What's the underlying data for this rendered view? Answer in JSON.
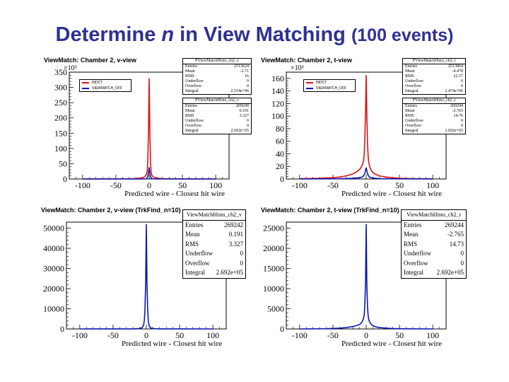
{
  "title": {
    "pre": "Determine ",
    "n": "n",
    "mid": " in View Matching ",
    "paren": "(100 events)"
  },
  "colors": {
    "title": "#2e3192",
    "red": "#dd1111",
    "blue": "#0a16b4"
  },
  "panels": [
    {
      "title": "ViewMatch: Chamber 2, v-view",
      "xlabel": "Predicted wire - Closest hit wire",
      "multiplier": "×10³",
      "legend": [
        "INDCT",
        "VIEWMATCH_OFF"
      ],
      "stats": [
        {
          "title": "PViewMatchHisto_ch2_v",
          "rows": [
            [
              "Entries",
              "2513624"
            ],
            [
              "Mean",
              "-2.71"
            ],
            [
              "RMS",
              "16"
            ],
            [
              "Underflow",
              "0"
            ],
            [
              "Overflow",
              "0"
            ],
            [
              "Integral",
              "2.514e+06"
            ]
          ]
        },
        {
          "title": "PViewMatchHisto_ch2_v",
          "rows": [
            [
              "Entries",
              "269249"
            ],
            [
              "Mean",
              "0.191"
            ],
            [
              "RMS",
              "3.327"
            ],
            [
              "Underflow",
              "0"
            ],
            [
              "Overflow",
              "0"
            ],
            [
              "Integral",
              "2.692e+05"
            ]
          ]
        }
      ]
    },
    {
      "title": "ViewMatch: Chamber 2, t-view",
      "xlabel": "Predicted wire - Closest hit wire",
      "multiplier": "×10³",
      "legend": [
        "INDCT",
        "VIEWMATCH_OFF"
      ],
      "stats": [
        {
          "title": "PViewMatchHisto_ch2_t",
          "rows": [
            [
              "Entries",
              "2513864"
            ],
            [
              "Mean",
              "-4.478"
            ],
            [
              "RMS",
              "22.57"
            ],
            [
              "Underflow",
              "0"
            ],
            [
              "Overflow",
              "0"
            ],
            [
              "Integral",
              "2.474e+06"
            ]
          ]
        },
        {
          "title": "PViewMatchHisto_ch2_t",
          "rows": [
            [
              "Entries",
              "269244"
            ],
            [
              "Mean",
              "-2.765"
            ],
            [
              "RMS",
              "14.76"
            ],
            [
              "Underflow",
              "0"
            ],
            [
              "Overflow",
              "0"
            ],
            [
              "Integral",
              "2.692e+05"
            ]
          ]
        }
      ]
    },
    {
      "title": "ViewMatch: Chamber 2, v-view (TrkFind_n=10)",
      "xlabel": "Predicted wire - Closest hit wire",
      "multiplier": "",
      "legend": [],
      "stats": [
        {
          "title": "ViewMatchHisto_ch2_v",
          "rows": [
            [
              "Entries",
              "269242"
            ],
            [
              "Mean",
              "0.191"
            ],
            [
              "RMS",
              "3.327"
            ],
            [
              "Underflow",
              "0"
            ],
            [
              "Overflow",
              "0"
            ],
            [
              "Integral",
              "2.692e+05"
            ]
          ]
        }
      ]
    },
    {
      "title": "ViewMatch: Chamber 2, t-view (TrkFind_n=10)",
      "xlabel": "Predicted wire - Closest hit wire",
      "multiplier": "",
      "legend": [],
      "stats": [
        {
          "title": "ViewMatchHisto_ch2_t",
          "rows": [
            [
              "Entries",
              "269244"
            ],
            [
              "Mean",
              "-2.765"
            ],
            [
              "RMS",
              "14.73"
            ],
            [
              "Underflow",
              "0"
            ],
            [
              "Overflow",
              "0"
            ],
            [
              "Integral",
              "2.692e+05"
            ]
          ]
        }
      ]
    }
  ],
  "chart_data": [
    {
      "type": "area",
      "title": "ViewMatch: Chamber 2, v-view",
      "xlabel": "Predicted wire - Closest hit wire",
      "ylabel": "",
      "xlim": [
        -120,
        120
      ],
      "ylim": [
        0,
        350
      ],
      "y_unit": "×10³",
      "xticks": [
        -100,
        -50,
        0,
        50,
        100
      ],
      "yticks": [
        0,
        50,
        100,
        150,
        200,
        250,
        300,
        350
      ],
      "series": [
        {
          "name": "INDCT",
          "color": "#dd1111",
          "x": [
            -100,
            -60,
            -40,
            -30,
            -20,
            -15,
            -10,
            -8,
            -6,
            -4,
            -3,
            -2,
            -1,
            0,
            1,
            2,
            3,
            4,
            6,
            8,
            10,
            15,
            20,
            30,
            40,
            60,
            100
          ],
          "y": [
            0.1,
            0.3,
            0.5,
            0.8,
            1.5,
            2.5,
            4,
            6,
            9,
            15,
            25,
            60,
            170,
            330,
            160,
            55,
            22,
            12,
            7,
            5,
            3.5,
            2,
            1.2,
            0.6,
            0.4,
            0.2,
            0.1
          ]
        },
        {
          "name": "VIEWMATCH_OFF",
          "color": "#0a16b4",
          "x": [
            -100,
            -10,
            -6,
            -4,
            -3,
            -2,
            -1,
            0,
            1,
            2,
            3,
            4,
            6,
            10,
            100
          ],
          "y": [
            0,
            0,
            0.5,
            1.5,
            4,
            9,
            22,
            38,
            20,
            8,
            3,
            1.5,
            0.5,
            0,
            0
          ]
        }
      ]
    },
    {
      "type": "area",
      "title": "ViewMatch: Chamber 2, t-view",
      "xlabel": "Predicted wire - Closest hit wire",
      "ylabel": "",
      "xlim": [
        -120,
        120
      ],
      "ylim": [
        0,
        170
      ],
      "y_unit": "×10³",
      "xticks": [
        -100,
        -50,
        0,
        50,
        100
      ],
      "yticks": [
        0,
        20,
        40,
        60,
        80,
        100,
        120,
        140,
        160
      ],
      "series": [
        {
          "name": "INDCT",
          "color": "#dd1111",
          "x": [
            -100,
            -70,
            -50,
            -40,
            -30,
            -20,
            -15,
            -10,
            -8,
            -6,
            -4,
            -3,
            -2,
            -1,
            0,
            1,
            2,
            3,
            4,
            6,
            8,
            10,
            15,
            20,
            30,
            40,
            50,
            70,
            100
          ],
          "y": [
            0.5,
            1,
            2,
            3,
            5,
            8,
            11,
            15,
            18,
            22,
            28,
            40,
            65,
            110,
            165,
            100,
            55,
            35,
            25,
            17,
            13,
            10,
            7,
            5,
            3,
            2,
            1,
            0.5,
            0.2
          ]
        },
        {
          "name": "VIEWMATCH_OFF",
          "color": "#0a16b4",
          "x": [
            -100,
            -40,
            -20,
            -10,
            -6,
            -4,
            -2,
            -1,
            0,
            1,
            2,
            4,
            6,
            10,
            20,
            40,
            100
          ],
          "y": [
            0,
            0.3,
            1,
            2,
            3,
            5,
            9,
            14,
            18,
            13,
            8,
            4,
            2.5,
            1.5,
            0.6,
            0.2,
            0
          ]
        }
      ]
    },
    {
      "type": "area",
      "title": "ViewMatch: Chamber 2, v-view (TrkFind_n=10)",
      "xlabel": "Predicted wire - Closest hit wire",
      "ylabel": "",
      "xlim": [
        -120,
        120
      ],
      "ylim": [
        0,
        53000
      ],
      "xticks": [
        -100,
        -50,
        0,
        50,
        100
      ],
      "yticks": [
        0,
        10000,
        20000,
        30000,
        40000,
        50000
      ],
      "series": [
        {
          "name": "ViewMatchHisto_ch2_v",
          "color": "#0a16b4",
          "x": [
            -100,
            -20,
            -10,
            -6,
            -4,
            -3,
            -2,
            -1,
            0,
            1,
            2,
            3,
            4,
            6,
            10,
            20,
            100
          ],
          "y": [
            0,
            50,
            200,
            700,
            2000,
            4500,
            10000,
            24000,
            52000,
            23000,
            9500,
            4000,
            1800,
            600,
            150,
            40,
            0
          ]
        }
      ]
    },
    {
      "type": "area",
      "title": "ViewMatch: Chamber 2, t-view (TrkFind_n=10)",
      "xlabel": "Predicted wire - Closest hit wire",
      "ylabel": "",
      "xlim": [
        -120,
        120
      ],
      "ylim": [
        0,
        26500
      ],
      "xticks": [
        -100,
        -50,
        0,
        50,
        100
      ],
      "yticks": [
        0,
        5000,
        10000,
        15000,
        20000,
        25000
      ],
      "series": [
        {
          "name": "ViewMatchHisto_ch2_t",
          "color": "#0a16b4",
          "x": [
            -100,
            -60,
            -40,
            -30,
            -20,
            -15,
            -10,
            -8,
            -6,
            -4,
            -3,
            -2,
            -1,
            0,
            1,
            2,
            3,
            4,
            6,
            8,
            10,
            15,
            20,
            30,
            40,
            60,
            100
          ],
          "y": [
            0,
            50,
            200,
            350,
            600,
            800,
            1100,
            1400,
            1800,
            2600,
            3500,
            6000,
            12000,
            26000,
            11000,
            5500,
            3200,
            2200,
            1500,
            1100,
            800,
            500,
            350,
            200,
            100,
            30,
            0
          ]
        }
      ]
    }
  ]
}
